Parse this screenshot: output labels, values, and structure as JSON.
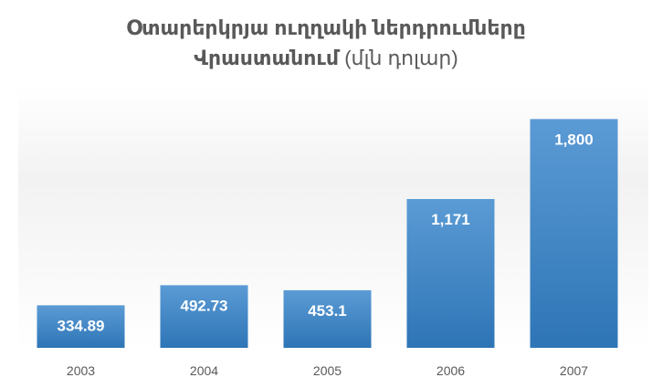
{
  "chart_data": {
    "type": "bar",
    "title_line1": "Օտարերկրյա ուղղակի ներդրումները",
    "title_line2_bold": "Վրաստանում",
    "title_line2_unit": "(մլն դոլար)",
    "categories": [
      "2003",
      "2004",
      "2005",
      "2006",
      "2007"
    ],
    "values": [
      334.89,
      492.73,
      453.1,
      1171,
      1800
    ],
    "value_labels": [
      "334.89",
      "492.73",
      "453.1",
      "1,171",
      "1,800"
    ],
    "xlabel": "",
    "ylabel": "",
    "ylim": [
      0,
      2000
    ],
    "grid": false,
    "legend": "none",
    "bar_color_top": "#5b9bd5",
    "bar_color_bottom": "#2e75b6"
  }
}
